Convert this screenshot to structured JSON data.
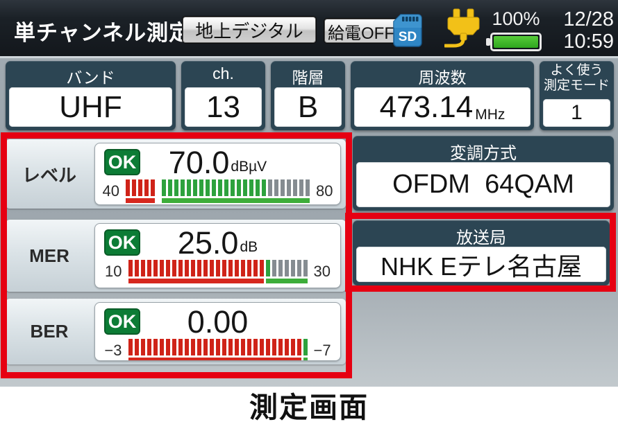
{
  "header": {
    "title": "単チャンネル測定",
    "mode_button": "地上デジタル",
    "power_button": "給電OFF",
    "sd_icon": "sd-card-icon",
    "plug_icon": "power-plug-icon",
    "battery": {
      "percent": "100%",
      "level": "full"
    },
    "date": "12/28",
    "time": "10:59"
  },
  "info_panels": [
    {
      "label": "バンド",
      "value": "UHF"
    },
    {
      "label": "ch.",
      "value": "13"
    },
    {
      "label": "階層",
      "value": "B"
    },
    {
      "label": "周波数",
      "value": "473.14",
      "unit": "MHz"
    },
    {
      "label_line1": "よく使う",
      "label_line2": "測定モード",
      "value": "1"
    }
  ],
  "measurements": [
    {
      "name": "レベル",
      "status": "OK",
      "value": "70.0",
      "unit": "dBµV",
      "scale_min": "40",
      "scale_max": "80",
      "bar": {
        "groups": [
          {
            "color": "red",
            "count": 5
          },
          {
            "color": "green",
            "count": 17,
            "gap_before": true
          },
          {
            "color": "gray",
            "count": 7
          }
        ],
        "underlines": [
          {
            "color": "red",
            "count": 5
          },
          {
            "color": "green",
            "count": 24,
            "gap_before": true
          }
        ]
      }
    },
    {
      "name": "MER",
      "status": "OK",
      "value": "25.0",
      "unit": "dB",
      "scale_min": "10",
      "scale_max": "30",
      "bar": {
        "groups": [
          {
            "color": "red",
            "count": 22
          },
          {
            "color": "green",
            "count": 1
          },
          {
            "color": "gray",
            "count": 6
          }
        ],
        "underlines": [
          {
            "color": "red",
            "count": 22
          },
          {
            "color": "green",
            "count": 7
          }
        ]
      }
    },
    {
      "name": "BER",
      "status": "OK",
      "value": "0.00",
      "unit": "",
      "scale_min": "−3",
      "scale_max": "−7",
      "bar": {
        "groups": [
          {
            "color": "red",
            "count": 28
          },
          {
            "color": "green",
            "count": 1
          }
        ],
        "underlines": [
          {
            "color": "red",
            "count": 28
          },
          {
            "color": "green",
            "count": 1
          }
        ]
      }
    }
  ],
  "right_panels": {
    "modulation": {
      "label": "変調方式",
      "value": "OFDM  64QAM"
    },
    "station": {
      "label": "放送局",
      "value": "NHK Eテレ名古屋"
    }
  },
  "caption": "測定画面",
  "colors": {
    "accent_red": "#e60012",
    "ok_green": "#0c7c35",
    "seg_red": "#cf2318",
    "seg_green": "#2da23d",
    "seg_gray": "#858c91",
    "under_red": "#d6281e",
    "under_green": "#3dad3a",
    "panel_dark": "#2c4553",
    "battery_green": "#2ea61e",
    "sd_blue": "#2f86c4"
  }
}
